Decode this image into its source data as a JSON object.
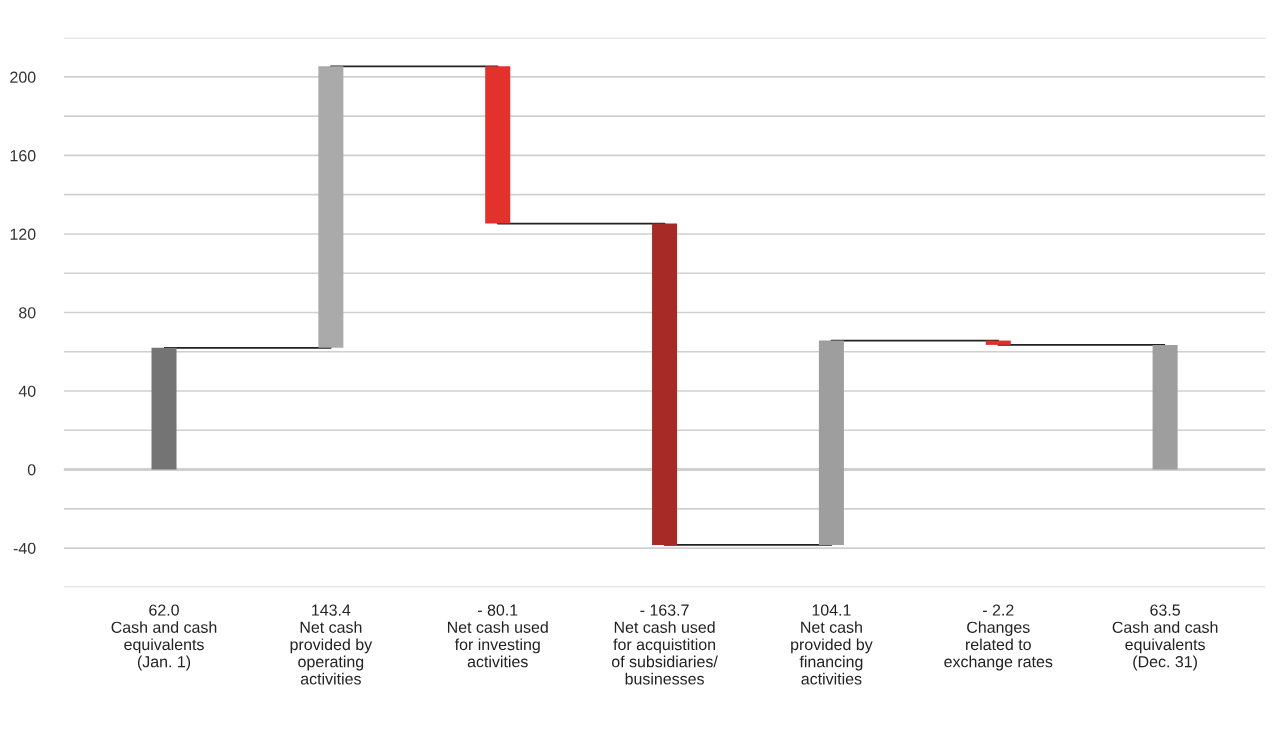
{
  "chart_data": {
    "type": "bar",
    "categories": [
      "Cash and cash\nequivalents\n(Jan. 1)",
      "Net cash\nprovided by\noperating\nactivities",
      "Net cash used\nfor investing\nactivities",
      "Net cash used\nfor acquistition\nof subsidiaries/\nbusinesses",
      "Net cash\nprovided by\nfinancing\nactivities",
      "Changes\nrelated to\nexchange rates",
      "Cash and cash\nequivalents\n(Dec. 31)"
    ],
    "series": [
      {
        "values": [
          62.0,
          143.4,
          -80.1,
          -163.7,
          104.1,
          -2.2,
          63.5
        ],
        "base": [
          0,
          62.0,
          205.4,
          125.3,
          -38.4,
          65.7,
          0
        ],
        "value_labels": [
          "62.0",
          "143.4",
          "- 80.1",
          "- 163.7",
          "104.1",
          "- 2.2",
          "63.5"
        ],
        "colors": [
          "#747474",
          "#aaaaaa",
          "#e3312b",
          "#a82a26",
          "#9e9e9e",
          "#d9332b",
          "#9e9e9e"
        ]
      },
      {
        "type": "step",
        "values": [
          62.0,
          205.4,
          125.3,
          -38.4,
          65.7,
          63.5,
          63.5
        ],
        "color": "#222222"
      }
    ],
    "ylim": [
      -60,
      220
    ],
    "yticks": [
      {
        "value": -60,
        "label": null
      },
      -40,
      {
        "value": -20,
        "label": null
      },
      0,
      {
        "value": 20,
        "label": null
      },
      40,
      {
        "value": 60,
        "label": null
      },
      80,
      {
        "value": 100,
        "label": null
      },
      120,
      {
        "value": 140,
        "label": null
      },
      160,
      {
        "value": 180,
        "label": null
      },
      200,
      {
        "value": 220,
        "label": null
      }
    ],
    "grid": "y"
  }
}
